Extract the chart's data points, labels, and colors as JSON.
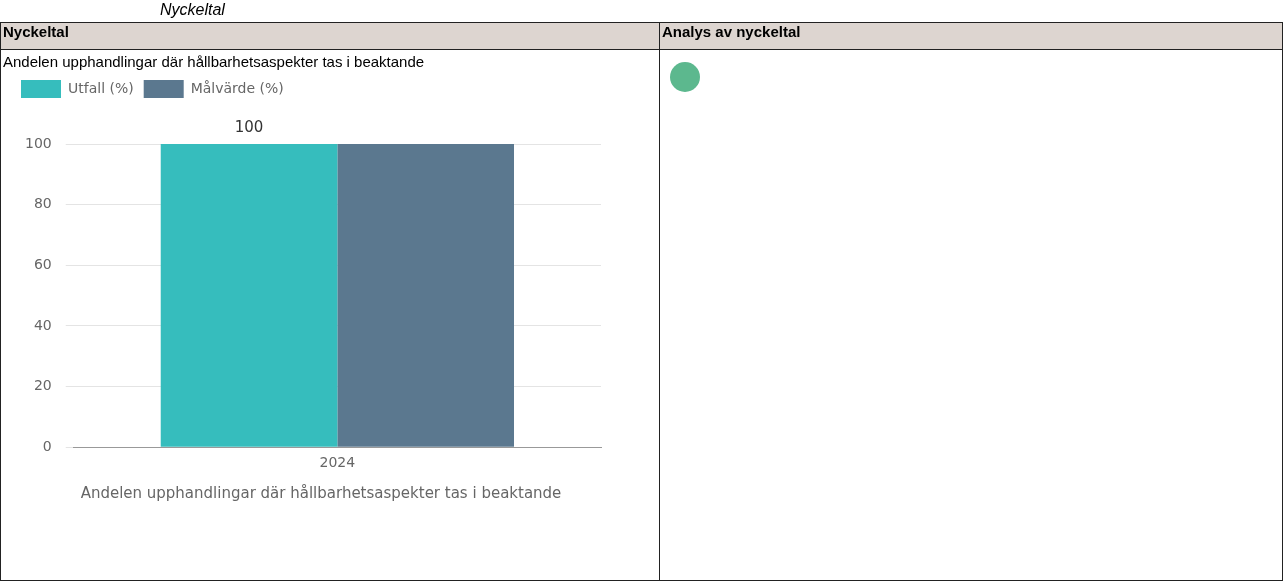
{
  "chart_data": {
    "type": "bar",
    "title": "Andelen upphandlingar där hållbarhetsaspekter tas i beaktande",
    "xlabel": "Andelen upphandlingar där hållbarhetsaspekter tas i beaktande",
    "categories": [
      "2024"
    ],
    "series": [
      {
        "name": "Utfall (%)",
        "color": "#36bdbd",
        "values": [
          100
        ],
        "value_labels": [
          "100"
        ]
      },
      {
        "name": "Målvärde (%)",
        "color": "#5b788f",
        "values": [
          100
        ],
        "value_labels": [
          null
        ]
      }
    ],
    "ylim": [
      0,
      100
    ],
    "yticks": [
      0,
      20,
      40,
      60,
      80,
      100
    ],
    "grid": "y",
    "legend": "top left",
    "annotations": [
      "Nyckeltal",
      "Nyckeltal",
      "Analys av nyckeltal"
    ]
  }
}
